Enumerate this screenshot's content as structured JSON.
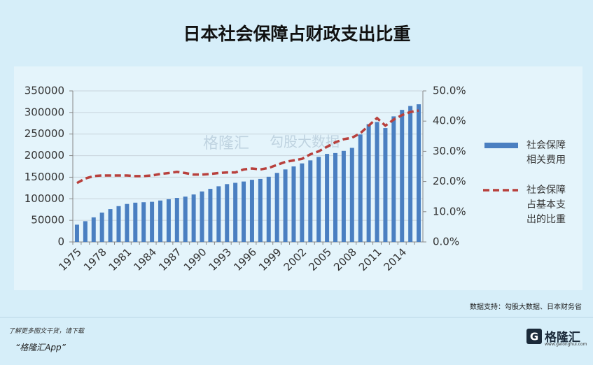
{
  "chart_data": {
    "type": "bar",
    "title": "日本社会保障占财政支出比重",
    "categories": [
      "1975",
      null,
      null,
      "1978",
      null,
      null,
      "1981",
      null,
      null,
      "1984",
      null,
      null,
      "1987",
      null,
      null,
      "1990",
      null,
      null,
      "1993",
      null,
      null,
      "1996",
      null,
      null,
      "1999",
      null,
      null,
      "2002",
      null,
      null,
      "2005",
      null,
      null,
      "2008",
      null,
      null,
      "2011",
      null,
      null,
      "2014",
      null,
      null
    ],
    "series": [
      {
        "name": "社会保障相关费用",
        "type": "bar",
        "color": "#4a7fc1",
        "values": [
          40000,
          48000,
          57000,
          68000,
          76000,
          83000,
          88000,
          91000,
          92000,
          93000,
          96000,
          99000,
          102000,
          105000,
          110000,
          117000,
          123000,
          129000,
          134000,
          137000,
          140000,
          144000,
          146000,
          151000,
          160000,
          168000,
          175000,
          182000,
          189000,
          197000,
          204000,
          206000,
          211000,
          218000,
          249000,
          273000,
          278000,
          264000,
          291000,
          306000,
          315000,
          319000
        ]
      },
      {
        "name": "社会保障占基本支出的比重",
        "type": "line",
        "axis": "y2",
        "color": "#b8403c",
        "values": [
          19.5,
          21,
          21.8,
          22,
          22,
          22,
          22,
          21.8,
          21.8,
          22,
          22.5,
          22.8,
          23.2,
          22.8,
          22.3,
          22.3,
          22.5,
          22.8,
          23,
          23,
          24,
          24.3,
          24,
          24.5,
          25.5,
          26.5,
          27,
          27.5,
          29,
          30,
          31.5,
          33,
          34,
          34.5,
          36,
          38.5,
          41,
          38.5,
          40.5,
          42,
          43,
          43.5
        ]
      }
    ],
    "ylim": [
      0,
      350000
    ],
    "yticks": [
      0,
      50000,
      100000,
      150000,
      200000,
      250000,
      300000,
      350000
    ],
    "y2lim": [
      0,
      50
    ],
    "y2ticks": [
      {
        "value": 0,
        "label": "0.0%"
      },
      {
        "value": 10,
        "label": "10.0%"
      },
      {
        "value": 20,
        "label": "20.0%"
      },
      {
        "value": 30,
        "label": "30.0%"
      },
      {
        "value": 40,
        "label": "40.0%"
      },
      {
        "value": 50,
        "label": "50.0%"
      }
    ],
    "grid": true,
    "legend": "right"
  },
  "watermark": [
    "格隆汇",
    "勾股大数据"
  ],
  "source": "数据支持：勾股大数据、日本财务省",
  "footer": {
    "line1": "了解更多图文干货，请下载",
    "line2": "“格隆汇App”",
    "logo": "格隆汇",
    "url": "www.gelonghui.com"
  }
}
